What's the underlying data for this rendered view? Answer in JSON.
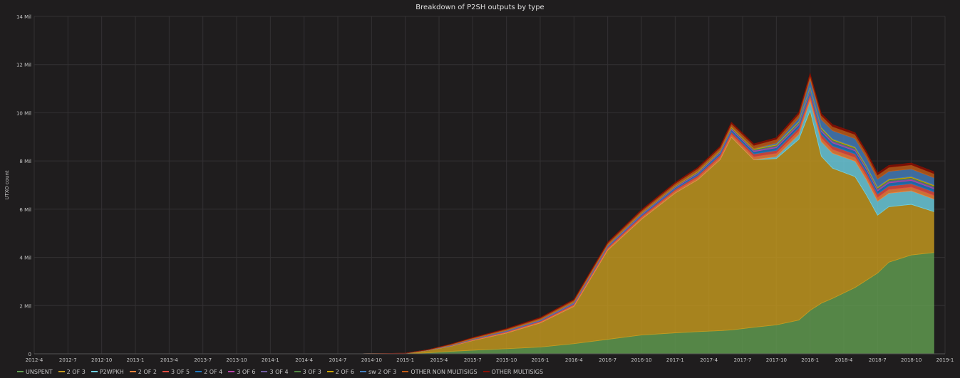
{
  "panel_title": "Breakdown of P2SH outputs by type",
  "chart_data": {
    "type": "area",
    "stacked": true,
    "title": "Breakdown of P2SH outputs by type",
    "xlabel": "",
    "ylabel": "UTXO count",
    "grid": true,
    "legend_position": "bottom",
    "ylim": [
      0,
      14000000
    ],
    "yticks": [
      {
        "value": 0,
        "label": "0"
      },
      {
        "value": 2000000,
        "label": "2 Mil"
      },
      {
        "value": 4000000,
        "label": "4 Mil"
      },
      {
        "value": 6000000,
        "label": "6 Mil"
      },
      {
        "value": 8000000,
        "label": "8 Mil"
      },
      {
        "value": 10000000,
        "label": "10 Mil"
      },
      {
        "value": 12000000,
        "label": "12 Mil"
      },
      {
        "value": 14000000,
        "label": "14 Mil"
      }
    ],
    "xticks": [
      "2012-4",
      "2012-7",
      "2012-10",
      "2013-1",
      "2013-4",
      "2013-7",
      "2013-10",
      "2014-1",
      "2014-4",
      "2014-7",
      "2014-10",
      "2015-1",
      "2015-4",
      "2015-7",
      "2015-10",
      "2016-1",
      "2016-4",
      "2016-7",
      "2016-10",
      "2017-1",
      "2017-4",
      "2017-7",
      "2017-10",
      "2018-1",
      "2018-4",
      "2018-7",
      "2018-10",
      "2019-1"
    ],
    "x": [
      "2012-4",
      "2012-7",
      "2012-10",
      "2013-1",
      "2013-4",
      "2013-7",
      "2013-10",
      "2014-1",
      "2014-4",
      "2014-7",
      "2014-10",
      "2015-1",
      "2015-3",
      "2015-5",
      "2015-7",
      "2015-10",
      "2016-1",
      "2016-4",
      "2016-7",
      "2016-10",
      "2017-1",
      "2017-3",
      "2017-5",
      "2017-6",
      "2017-8",
      "2017-10",
      "2017-12",
      "2018-1",
      "2018-2",
      "2018-3",
      "2018-5",
      "2018-6",
      "2018-7",
      "2018-8",
      "2018-10",
      "2018-12"
    ],
    "series": [
      {
        "name": "UNSPENT",
        "color": "#629e51",
        "values": [
          0,
          0,
          0,
          0,
          0,
          0,
          0,
          0,
          0,
          0,
          0,
          5000,
          40000,
          100000,
          150000,
          210000,
          280000,
          420000,
          600000,
          780000,
          870000,
          920000,
          960000,
          990000,
          1100000,
          1200000,
          1400000,
          1800000,
          2100000,
          2300000,
          2750000,
          3050000,
          3350000,
          3800000,
          4100000,
          4200000
        ]
      },
      {
        "name": "2 OF 3",
        "color": "#c69a1f",
        "values": [
          0,
          0,
          0,
          0,
          0,
          0,
          0,
          0,
          0,
          0,
          5000,
          15000,
          100000,
          210000,
          400000,
          650000,
          1000000,
          1550000,
          3700000,
          4800000,
          5800000,
          6300000,
          7100000,
          8000000,
          6950000,
          6900000,
          7500000,
          8300000,
          6100000,
          5400000,
          4600000,
          3550000,
          2400000,
          2300000,
          2100000,
          1700000
        ]
      },
      {
        "name": "P2WPKH",
        "color": "#6ed0e0",
        "values": [
          0,
          0,
          0,
          0,
          0,
          0,
          0,
          0,
          0,
          0,
          0,
          0,
          0,
          0,
          0,
          0,
          0,
          0,
          0,
          0,
          0,
          0,
          0,
          0,
          0,
          80000,
          200000,
          400000,
          600000,
          620000,
          640000,
          630000,
          580000,
          560000,
          560000,
          520000
        ]
      },
      {
        "name": "2 OF 2",
        "color": "#ef843c",
        "values": [
          0,
          0,
          0,
          0,
          0,
          0,
          0,
          0,
          0,
          0,
          0,
          1000,
          5000,
          10000,
          20000,
          30000,
          40000,
          50000,
          60000,
          70000,
          80000,
          90000,
          100000,
          110000,
          120000,
          130000,
          140000,
          150000,
          150000,
          150000,
          150000,
          150000,
          150000,
          150000,
          150000,
          150000
        ]
      },
      {
        "name": "3 OF 5",
        "color": "#e24d42",
        "values": [
          0,
          0,
          0,
          0,
          0,
          0,
          0,
          0,
          0,
          0,
          0,
          1000,
          5000,
          10000,
          20000,
          30000,
          40000,
          50000,
          60000,
          70000,
          80000,
          90000,
          100000,
          110000,
          120000,
          130000,
          140000,
          150000,
          150000,
          150000,
          150000,
          150000,
          150000,
          150000,
          150000,
          150000
        ]
      },
      {
        "name": "2 OF 4",
        "color": "#1f78c1",
        "values": [
          0,
          0,
          0,
          0,
          0,
          0,
          0,
          0,
          0,
          0,
          0,
          1000,
          5000,
          10000,
          15000,
          20000,
          25000,
          30000,
          40000,
          50000,
          60000,
          70000,
          80000,
          90000,
          100000,
          110000,
          120000,
          130000,
          130000,
          130000,
          130000,
          130000,
          130000,
          130000,
          130000,
          130000
        ]
      },
      {
        "name": "3 OF 6",
        "color": "#ba43a9",
        "values": [
          0,
          0,
          0,
          0,
          0,
          0,
          0,
          0,
          0,
          0,
          0,
          0,
          0,
          5000,
          5000,
          10000,
          10000,
          15000,
          15000,
          20000,
          20000,
          25000,
          25000,
          30000,
          30000,
          35000,
          35000,
          40000,
          40000,
          40000,
          40000,
          40000,
          40000,
          40000,
          40000,
          40000
        ]
      },
      {
        "name": "3 OF 4",
        "color": "#705da0",
        "values": [
          0,
          0,
          0,
          0,
          0,
          0,
          0,
          0,
          0,
          0,
          0,
          0,
          0,
          5000,
          5000,
          10000,
          10000,
          15000,
          15000,
          20000,
          20000,
          25000,
          25000,
          30000,
          30000,
          35000,
          35000,
          40000,
          40000,
          40000,
          40000,
          40000,
          40000,
          40000,
          40000,
          40000
        ]
      },
      {
        "name": "3 OF 3",
        "color": "#508642",
        "values": [
          0,
          0,
          0,
          0,
          0,
          0,
          0,
          0,
          0,
          0,
          0,
          0,
          0,
          5000,
          5000,
          10000,
          10000,
          15000,
          15000,
          20000,
          20000,
          25000,
          25000,
          30000,
          30000,
          35000,
          35000,
          40000,
          40000,
          40000,
          40000,
          40000,
          40000,
          40000,
          40000,
          40000
        ]
      },
      {
        "name": "2 OF 6",
        "color": "#cca300",
        "values": [
          0,
          0,
          0,
          0,
          0,
          0,
          0,
          0,
          0,
          0,
          0,
          0,
          0,
          5000,
          5000,
          10000,
          10000,
          15000,
          15000,
          20000,
          20000,
          25000,
          25000,
          30000,
          30000,
          35000,
          35000,
          40000,
          40000,
          40000,
          40000,
          40000,
          40000,
          40000,
          40000,
          40000
        ]
      },
      {
        "name": "sw 2 OF 3",
        "color": "#447ebc",
        "values": [
          0,
          0,
          0,
          0,
          0,
          0,
          0,
          0,
          0,
          0,
          0,
          0,
          0,
          0,
          0,
          0,
          0,
          0,
          0,
          0,
          0,
          0,
          0,
          0,
          0,
          60000,
          150000,
          300000,
          330000,
          350000,
          350000,
          340000,
          330000,
          320000,
          320000,
          300000
        ]
      },
      {
        "name": "OTHER NON MULTISIGS",
        "color": "#c15c17",
        "values": [
          0,
          0,
          0,
          0,
          0,
          0,
          0,
          0,
          0,
          0,
          0,
          2000,
          10000,
          30000,
          40000,
          50000,
          60000,
          70000,
          80000,
          90000,
          100000,
          110000,
          120000,
          130000,
          140000,
          150000,
          160000,
          170000,
          170000,
          170000,
          170000,
          170000,
          170000,
          170000,
          170000,
          170000
        ]
      },
      {
        "name": "OTHER MULTISIGS",
        "color": "#890f02",
        "values": [
          0,
          0,
          0,
          0,
          0,
          0,
          0,
          0,
          0,
          0,
          0,
          500,
          2000,
          5000,
          10000,
          15000,
          20000,
          25000,
          30000,
          35000,
          40000,
          45000,
          50000,
          55000,
          60000,
          65000,
          70000,
          75000,
          75000,
          75000,
          75000,
          75000,
          75000,
          75000,
          75000,
          75000
        ]
      }
    ]
  }
}
